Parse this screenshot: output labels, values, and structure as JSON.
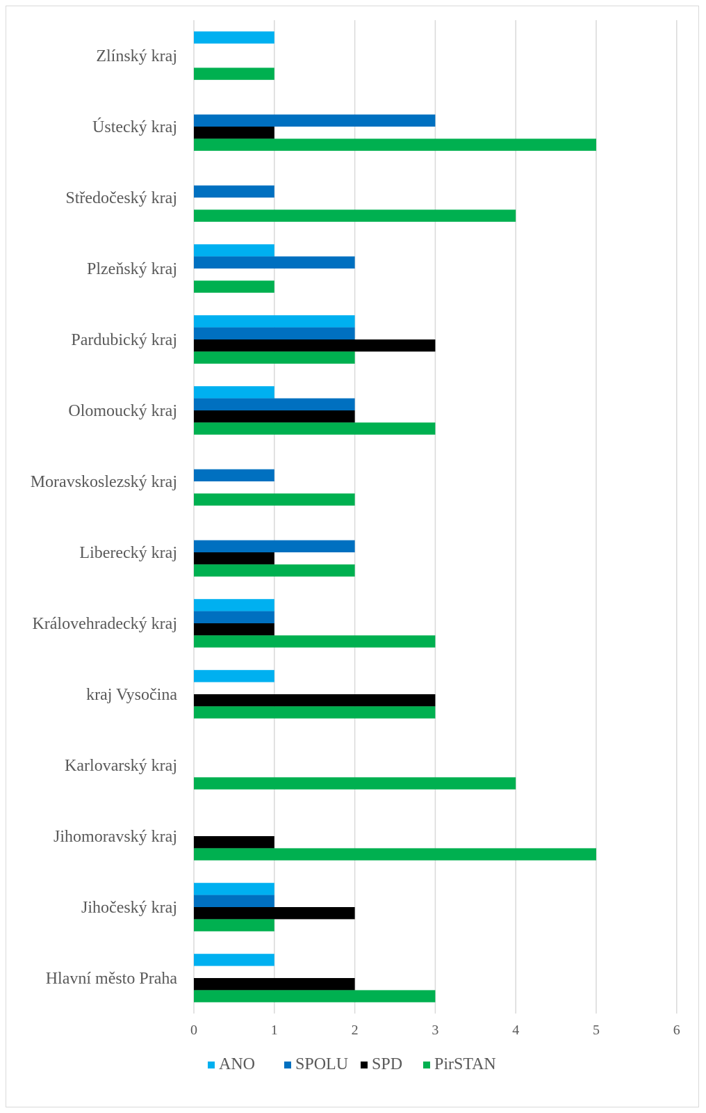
{
  "chart_data": {
    "type": "bar",
    "orientation": "horizontal",
    "categories": [
      "Hlavní město Praha",
      "Jihočeský kraj",
      "Jihomoravský kraj",
      "Karlovarský kraj",
      "kraj Vysočina",
      "Královehradecký kraj",
      "Liberecký kraj",
      "Moravskoslezský kraj",
      "Olomoucký kraj",
      "Pardubický kraj",
      "Plzeňský kraj",
      "Středočeský kraj",
      "Ústecký kraj",
      "Zlínský kraj"
    ],
    "series": [
      {
        "name": "ANO",
        "color": "#00b0f0",
        "values": [
          1,
          1,
          0,
          0,
          1,
          1,
          0,
          0,
          1,
          2,
          1,
          0,
          0,
          1
        ]
      },
      {
        "name": "SPOLU",
        "color": "#0070c0",
        "values": [
          0,
          1,
          0,
          0,
          0,
          1,
          2,
          1,
          2,
          2,
          2,
          1,
          3,
          0
        ]
      },
      {
        "name": "SPD",
        "color": "#000000",
        "values": [
          2,
          2,
          1,
          0,
          3,
          1,
          1,
          0,
          2,
          3,
          0,
          0,
          1,
          0
        ]
      },
      {
        "name": "PirSTAN",
        "color": "#00b050",
        "values": [
          3,
          1,
          5,
          4,
          3,
          3,
          2,
          2,
          3,
          2,
          1,
          4,
          5,
          1
        ]
      }
    ],
    "xlim": [
      0,
      6
    ],
    "xticks": [
      "0",
      "1",
      "2",
      "3",
      "4",
      "5",
      "6"
    ],
    "grid": true,
    "legend_position": "bottom"
  }
}
